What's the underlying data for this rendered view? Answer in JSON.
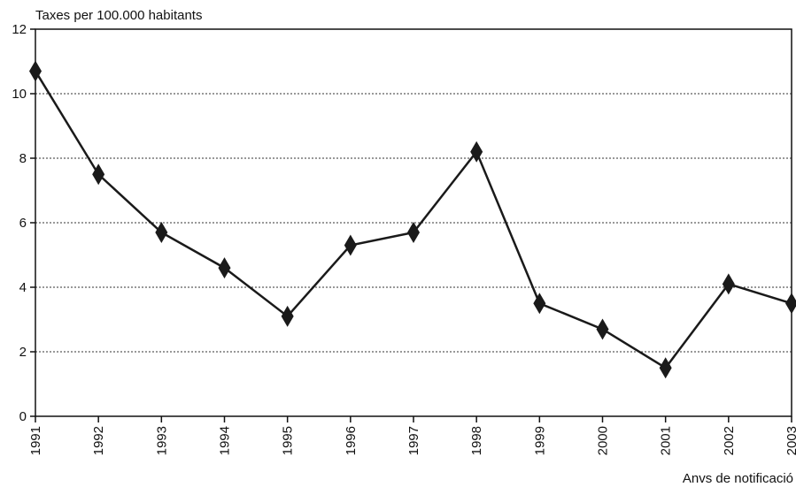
{
  "chart_data": {
    "type": "line",
    "y_label": "Taxes per 100.000 habitants",
    "x_label": "Anvs de notificació",
    "categories": [
      "1991",
      "1992",
      "1993",
      "1994",
      "1995",
      "1996",
      "1997",
      "1998",
      "1999",
      "2000",
      "2001",
      "2002",
      "2003"
    ],
    "values": [
      10.7,
      7.5,
      5.7,
      4.6,
      3.1,
      5.3,
      5.7,
      8.2,
      3.5,
      2.7,
      1.5,
      4.1,
      3.5
    ],
    "color": "#1a1a1a",
    "ylim": [
      0,
      12
    ],
    "yticks": [
      0,
      2,
      4,
      6,
      8,
      10,
      12
    ],
    "grid": true
  }
}
